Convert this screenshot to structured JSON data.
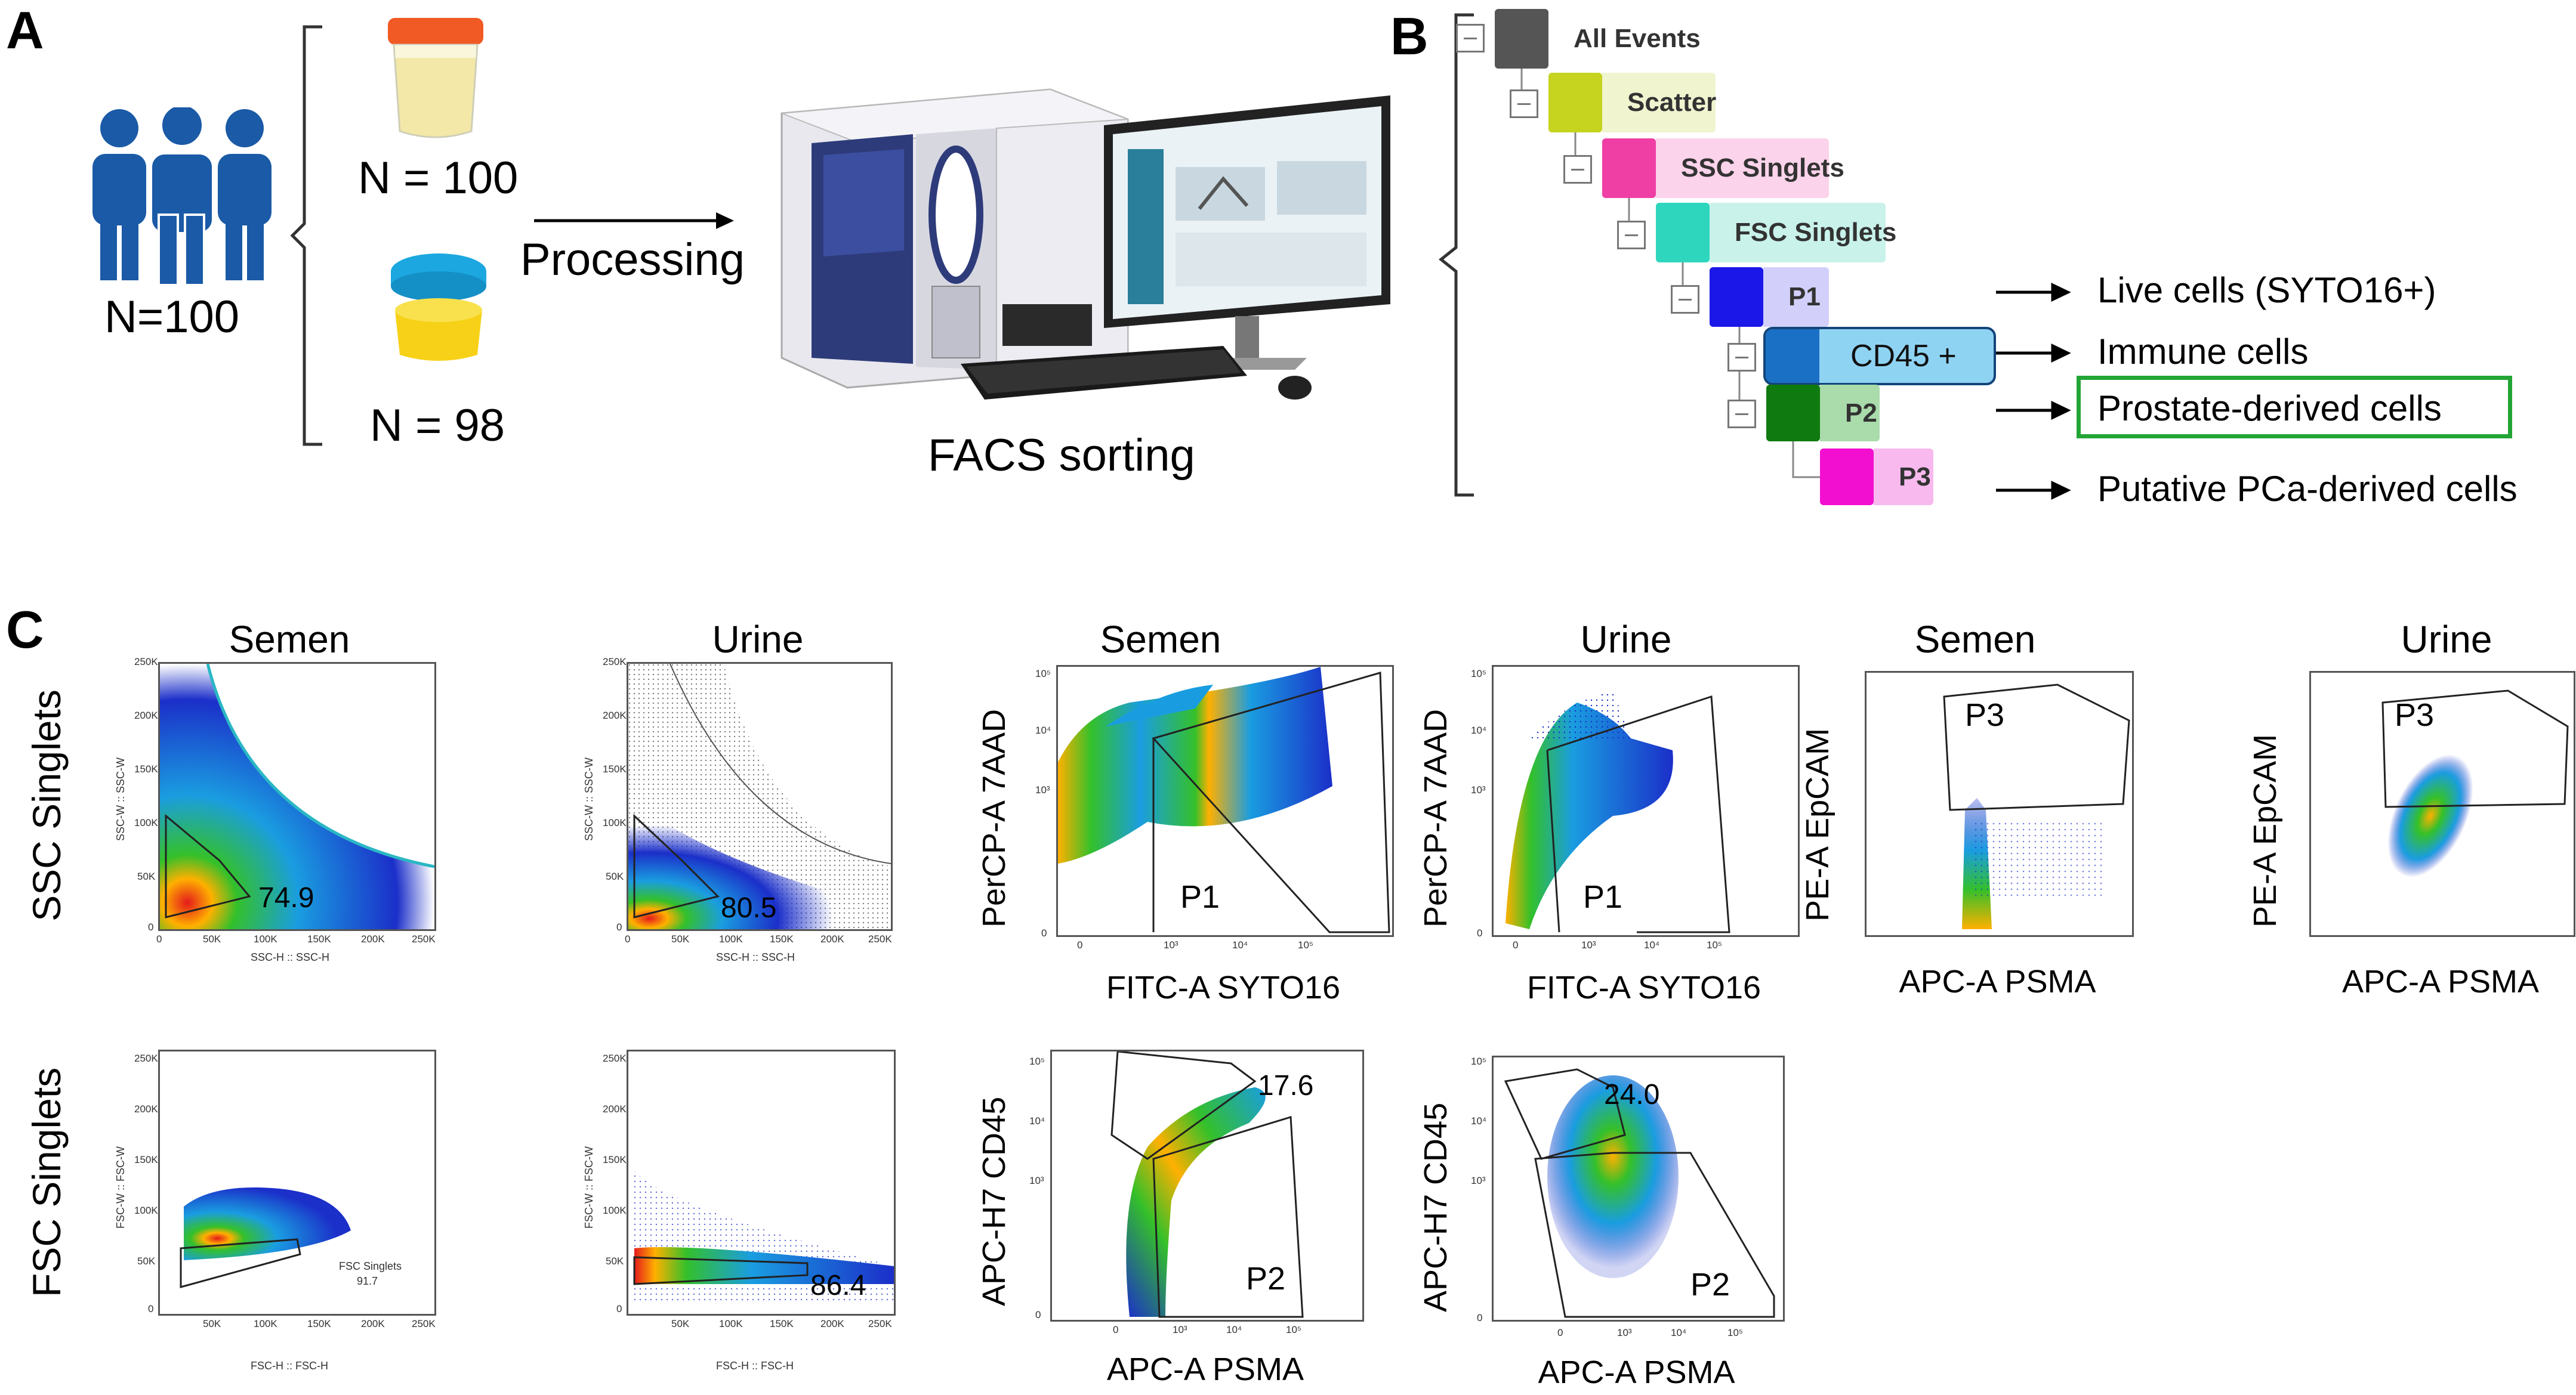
{
  "panel_a": {
    "letter": "A",
    "cohort_label": "N=100",
    "urine_n": "N = 100",
    "semen_n": "N = 98",
    "processing_label": "Processing",
    "facs_label": "FACS sorting"
  },
  "panel_b": {
    "letter": "B",
    "gates": [
      {
        "label": "All Events",
        "color": "#555555",
        "bg": "#e0e0e0"
      },
      {
        "label": "Scatter",
        "color": "#c6d31f",
        "bg": "#f0f4cf"
      },
      {
        "label": "SSC Singlets",
        "color": "#ef3fa5",
        "bg": "#fbd3ea"
      },
      {
        "label": "FSC Singlets",
        "color": "#2dd6bd",
        "bg": "#c8f2ea"
      },
      {
        "label": "P1",
        "color": "#1a17e8",
        "bg": "#d2d0fb"
      },
      {
        "label": "CD45 +",
        "color": "#1a70c4",
        "bg": "#8fd3f3"
      },
      {
        "label": "P2",
        "color": "#0f7a0f",
        "bg": "#a9dbab"
      },
      {
        "label": "P3",
        "color": "#f30fcf",
        "bg": "#f8b9ee"
      }
    ],
    "annotations": [
      "Live cells (SYTO16+)",
      "Immune cells",
      "Prostate-derived cells",
      "Putative PCa-derived cells"
    ]
  },
  "panel_c": {
    "letter": "C",
    "row_titles": [
      "SSC Singlets",
      "FSC Singlets"
    ],
    "col_titles": [
      "Semen",
      "Urine",
      "Semen",
      "Urine",
      "Semen",
      "Urine"
    ],
    "scatter_ticks_x": [
      "0",
      "50K",
      "100K",
      "150K",
      "200K",
      "250K"
    ],
    "scatter_ticks_y": [
      "0",
      "50K",
      "100K",
      "150K",
      "200K",
      "250K"
    ],
    "log_ticks": [
      "0",
      "10³",
      "10⁴",
      "10⁵"
    ],
    "ssc_x_label": "SSC-H :: SSC-H",
    "ssc_y_label": "SSC-W :: SSC-W",
    "fsc_x_label": "FSC-H :: FSC-H",
    "fsc_y_label": "FSC-W :: FSC-W",
    "ssc_semen_pct": "74.9",
    "ssc_urine_pct": "80.5",
    "fsc_semen_gate_name": "FSC Singlets",
    "fsc_semen_pct": "91.7",
    "fsc_urine_pct": "86.4",
    "syto_x": "FITC-A SYTO16",
    "syto_y": "PerCP-A 7AAD",
    "p1": "P1",
    "psma_x": "APC-A PSMA",
    "epcam_y": "PE-A EpCAM",
    "p3": "P3",
    "cd45_y": "APC-H7 CD45",
    "cd45_semen_pct": "17.6",
    "cd45_urine_pct": "24.0",
    "p2": "P2"
  }
}
